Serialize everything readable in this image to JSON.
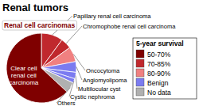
{
  "chart_data": {
    "type": "pie",
    "title": "Renal tumors",
    "categories": [
      "Papillary renal cell carcinoma",
      "Chromophobe renal cell carcinoma",
      "Oncocytoma",
      "Angiomyolipoma",
      "Multilocular cyst",
      "Cystic nephroma",
      "Others",
      "Clear cell renal cell carcinoma"
    ],
    "values": [
      10,
      5,
      7,
      5,
      3,
      2,
      5,
      63
    ],
    "colors": [
      "#c0282d",
      "#c0282d",
      "#f08080",
      "#7b7bf0",
      "#7b7bf0",
      "#7b7bf0",
      "#b0b0b0",
      "#7f0000"
    ],
    "annotations": [
      {
        "text": "Renal cell carcinomas"
      }
    ],
    "key": {
      "title": "5-year survival",
      "entries": [
        {
          "label": "50-70%",
          "color": "#7f0000"
        },
        {
          "label": "70-85%",
          "color": "#c0282d"
        },
        {
          "label": "80-90%",
          "color": "#f08080"
        },
        {
          "label": "Benign",
          "color": "#7b7bf0"
        },
        {
          "label": "No data",
          "color": "#b0b0b0"
        }
      ]
    }
  }
}
